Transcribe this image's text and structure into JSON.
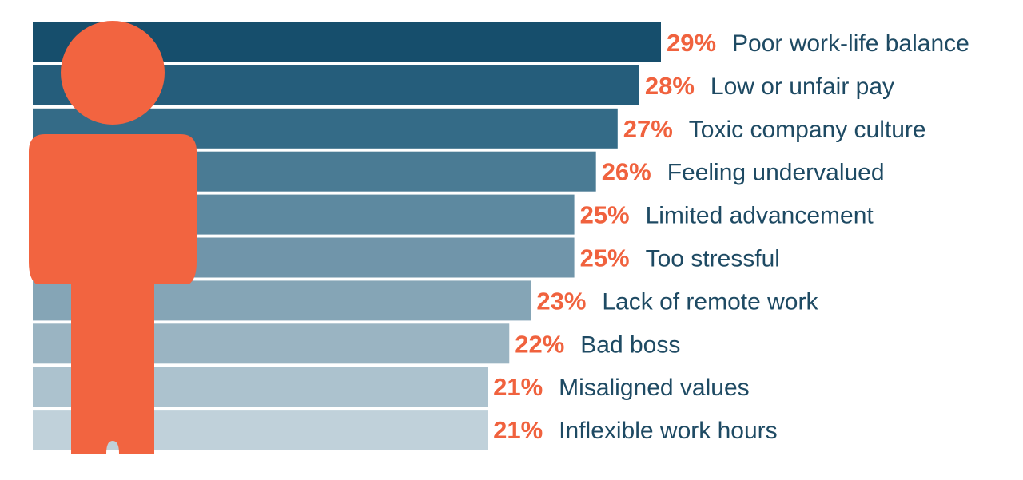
{
  "chart_data": {
    "type": "bar",
    "orientation": "horizontal",
    "categories": [
      "Poor work-life balance",
      "Low or unfair pay",
      "Toxic company culture",
      "Feeling undervalued",
      "Limited advancement",
      "Too stressful",
      "Lack of remote work",
      "Bad boss",
      "Misaligned values",
      "Inflexible work hours"
    ],
    "values": [
      29,
      28,
      27,
      26,
      25,
      25,
      23,
      22,
      21,
      21
    ],
    "value_labels": [
      "29%",
      "28%",
      "27%",
      "26%",
      "25%",
      "25%",
      "23%",
      "22%",
      "21%",
      "21%"
    ],
    "title": "",
    "xlabel": "",
    "ylabel": "",
    "unit": "%",
    "grid": false,
    "legend": "none",
    "bar_colors": [
      "#164e6c",
      "#255d7b",
      "#346b87",
      "#4a7b94",
      "#5d89a0",
      "#7095aa",
      "#85a5b6",
      "#9ab4c2",
      "#acc2ce",
      "#c0d1da"
    ],
    "label_color": "#1e4a63",
    "value_color": "#f0623e",
    "icon": {
      "name": "person-icon",
      "color": "#f26440"
    }
  }
}
